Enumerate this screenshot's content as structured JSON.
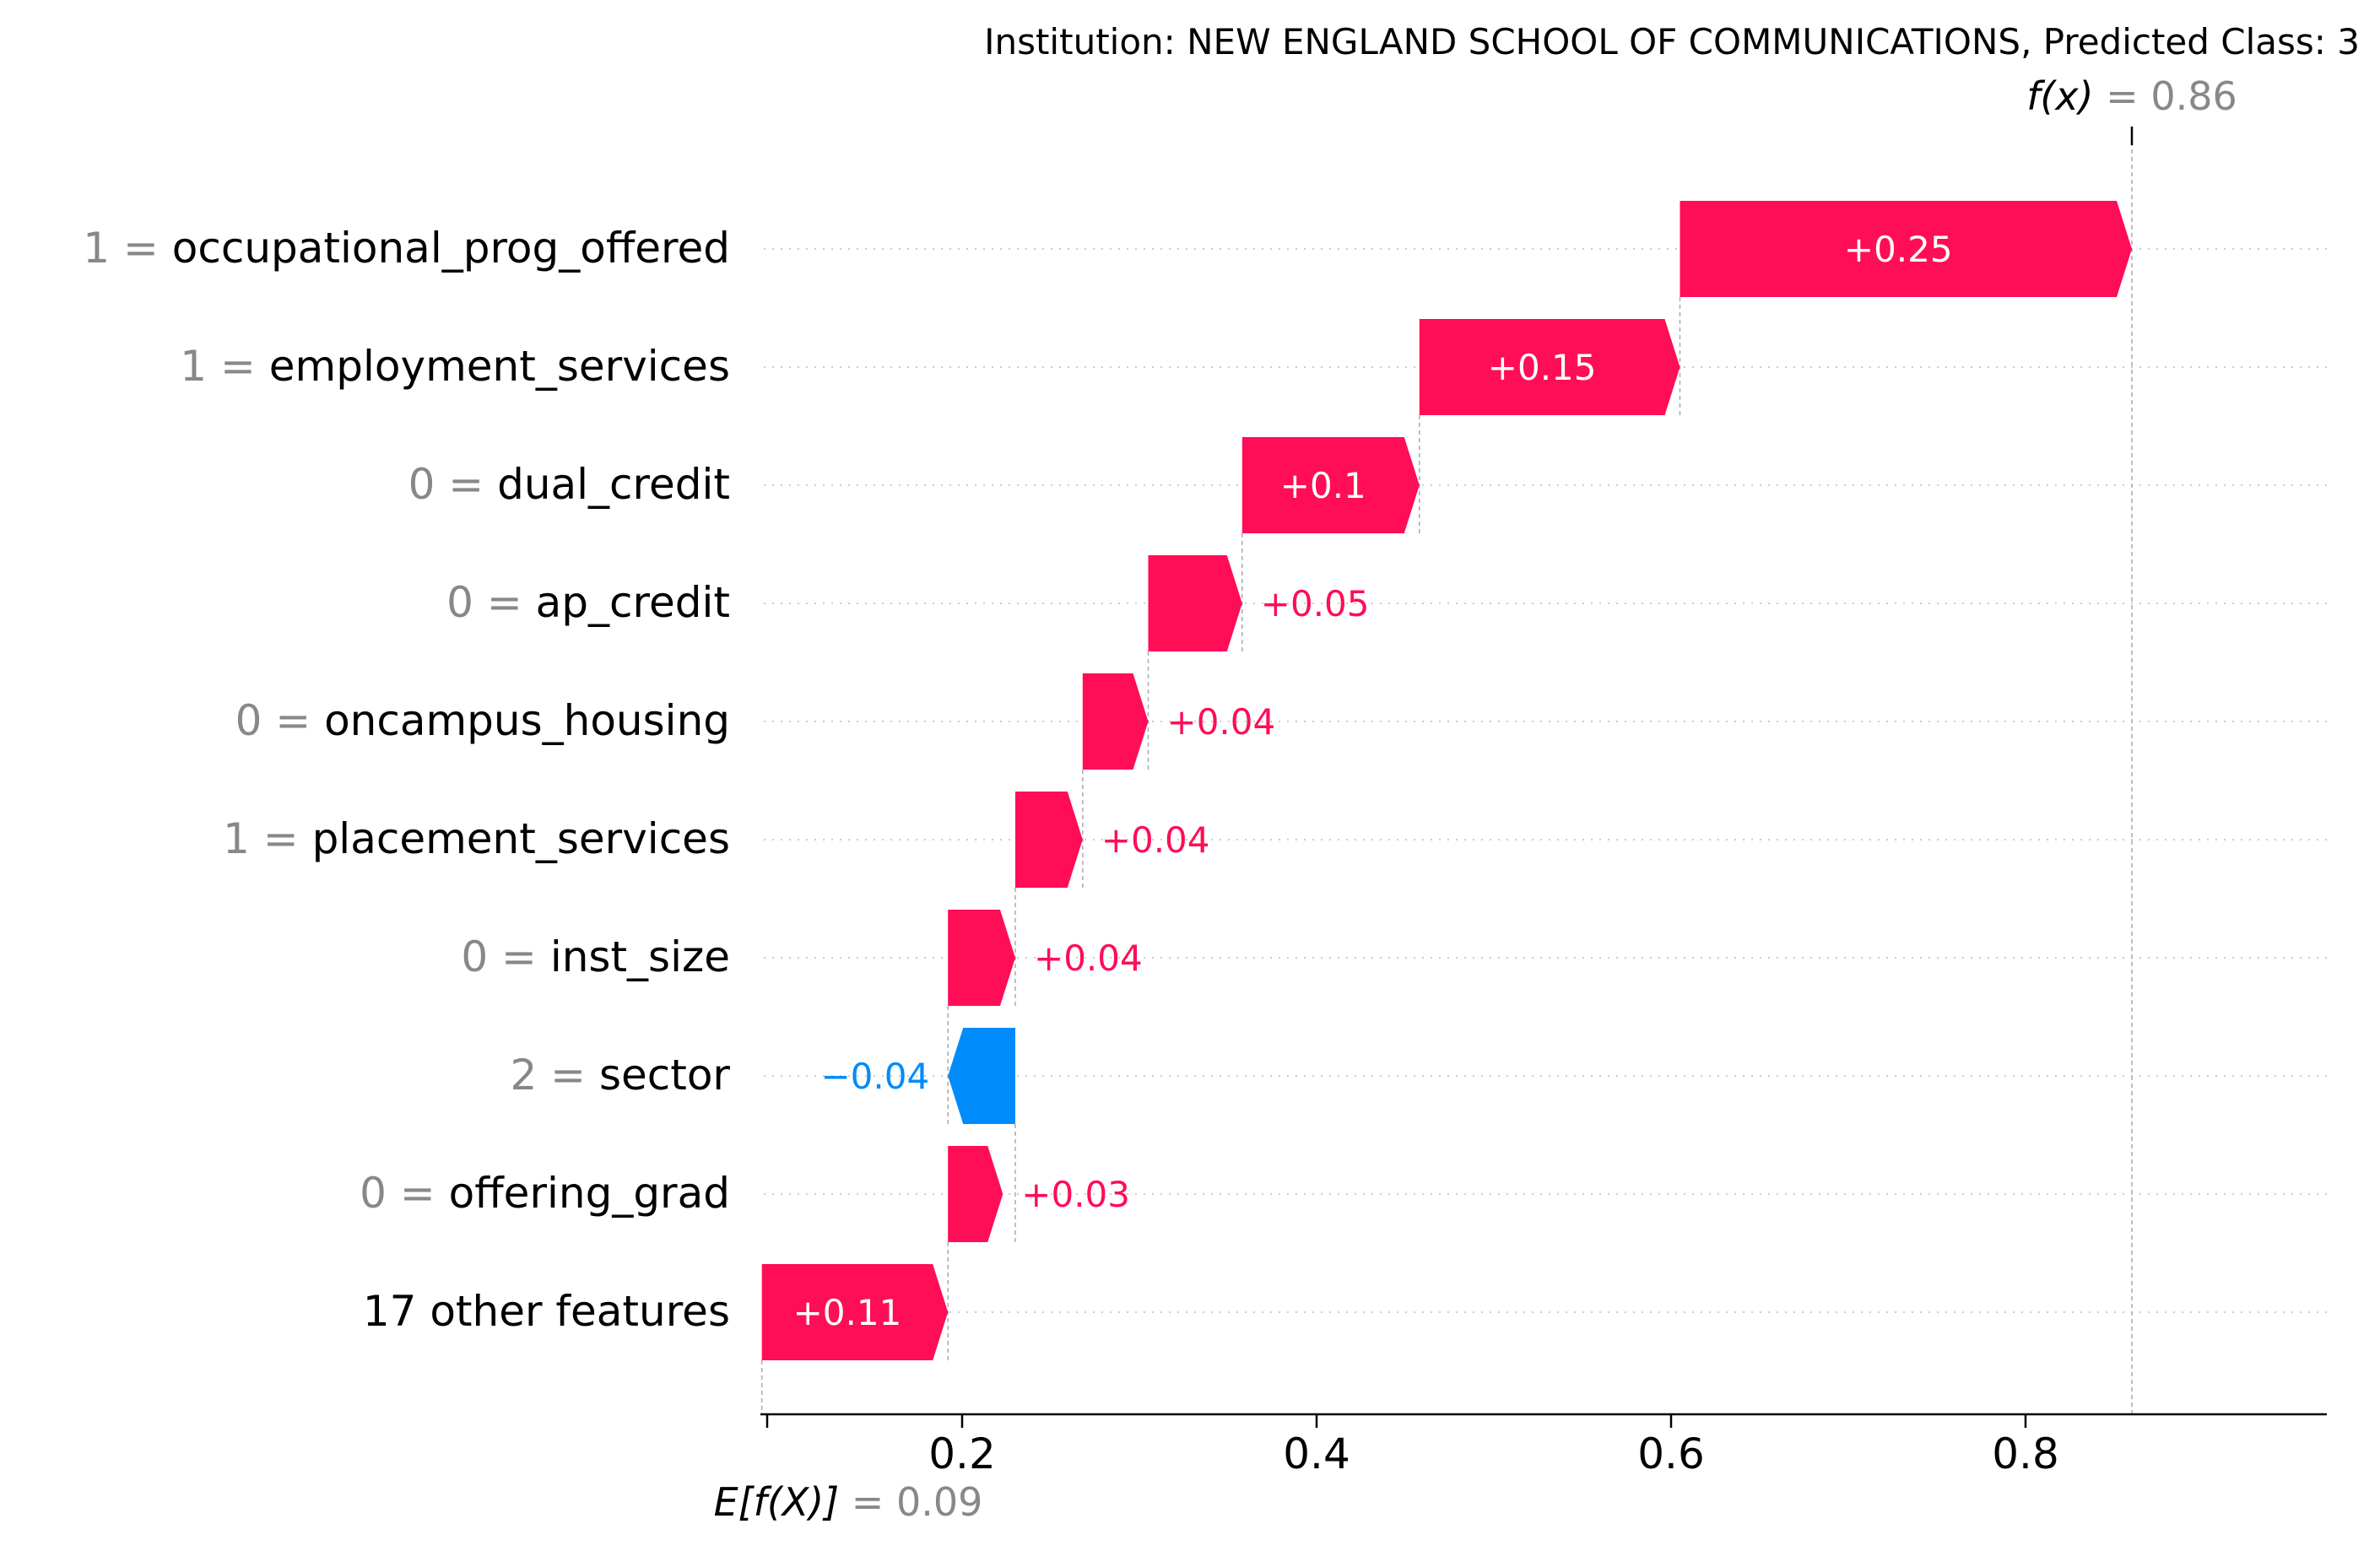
{
  "chart_data": {
    "type": "waterfall",
    "title": "Institution: NEW ENGLAND SCHOOL OF COMMUNICATIONS, Predicted Class: 3",
    "fx": {
      "label": "f(x)",
      "equals": "=",
      "value_text": "0.86",
      "value": 0.86
    },
    "base": {
      "label": "E[f(X)]",
      "equals": "=",
      "value_text": "0.09",
      "value": 0.09
    },
    "xlim": [
      0.09,
      0.97
    ],
    "ticks": [
      {
        "value": 0.2,
        "label": "0.2"
      },
      {
        "value": 0.4,
        "label": "0.4"
      },
      {
        "value": 0.6,
        "label": "0.6"
      },
      {
        "value": 0.8,
        "label": "0.8"
      }
    ],
    "features": [
      {
        "value_text": "1",
        "equals": "=",
        "name": "occupational_prog_offered",
        "start": 0.605,
        "end": 0.86,
        "label": "+0.25"
      },
      {
        "value_text": "1",
        "equals": "=",
        "name": "employment_services",
        "start": 0.458,
        "end": 0.605,
        "label": "+0.15"
      },
      {
        "value_text": "0",
        "equals": "=",
        "name": "dual_credit",
        "start": 0.358,
        "end": 0.458,
        "label": "+0.1"
      },
      {
        "value_text": "0",
        "equals": "=",
        "name": "ap_credit",
        "start": 0.305,
        "end": 0.358,
        "label": "+0.05"
      },
      {
        "value_text": "0",
        "equals": "=",
        "name": "oncampus_housing",
        "start": 0.268,
        "end": 0.305,
        "label": "+0.04"
      },
      {
        "value_text": "1",
        "equals": "=",
        "name": "placement_services",
        "start": 0.23,
        "end": 0.268,
        "label": "+0.04"
      },
      {
        "value_text": "0",
        "equals": "=",
        "name": "inst_size",
        "start": 0.192,
        "end": 0.23,
        "label": "+0.04"
      },
      {
        "value_text": "2",
        "equals": "=",
        "name": "sector",
        "start": 0.23,
        "end": 0.192,
        "label": "−0.04"
      },
      {
        "value_text": "0",
        "equals": "=",
        "name": "offering_grad",
        "start": 0.192,
        "end": 0.223,
        "label": "+0.03"
      },
      {
        "value_text": "",
        "equals": "",
        "name": "17 other features",
        "start": 0.087,
        "end": 0.192,
        "label": "+0.11"
      }
    ],
    "colors": {
      "positive": "#ff0d57",
      "negative": "#008bfb",
      "muted": "#888888",
      "axis": "#000000",
      "grid": "#cccccc"
    }
  }
}
